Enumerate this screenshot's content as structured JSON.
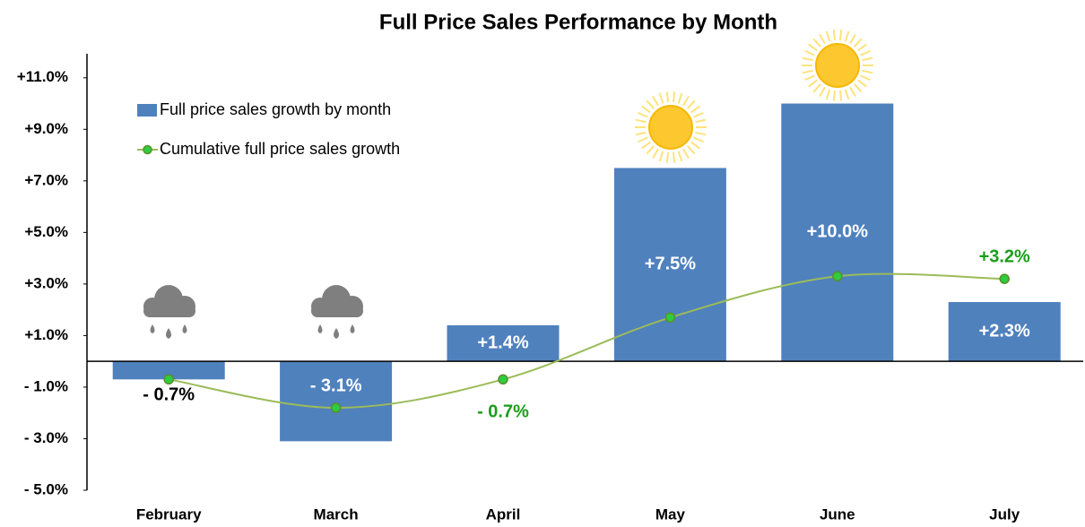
{
  "chart_data": {
    "type": "bar",
    "title": "Full Price Sales Performance by Month",
    "categories": [
      "February",
      "March",
      "April",
      "May",
      "June",
      "July"
    ],
    "ylim": [
      -5,
      12
    ],
    "yticks": [
      {
        "value": -5,
        "label": "- 5.0%"
      },
      {
        "value": -3,
        "label": "- 3.0%"
      },
      {
        "value": -1,
        "label": "- 1.0%"
      },
      {
        "value": 1,
        "label": "+1.0%"
      },
      {
        "value": 3,
        "label": "+3.0%"
      },
      {
        "value": 5,
        "label": "+5.0%"
      },
      {
        "value": 7,
        "label": "+7.0%"
      },
      {
        "value": 9,
        "label": "+9.0%"
      },
      {
        "value": 11,
        "label": "+11.0%"
      }
    ],
    "legend": "top-left",
    "series": [
      {
        "name": "Full price sales growth by month",
        "type": "bar",
        "color": "#4f81bd",
        "values": [
          -0.7,
          -3.1,
          1.4,
          7.5,
          10.0,
          2.3
        ],
        "value_labels": [
          "- 0.7%",
          "- 3.1%",
          "+1.4%",
          "+7.5%",
          "+10.0%",
          "+2.3%"
        ]
      },
      {
        "name": "Cumulative full price sales growth",
        "type": "line",
        "color": "#9bbb59",
        "values": [
          -0.7,
          -1.8,
          -0.7,
          1.7,
          3.3,
          3.2
        ],
        "value_labels": [
          null,
          null,
          "- 0.7%",
          null,
          null,
          "+3.2%"
        ]
      }
    ]
  }
}
